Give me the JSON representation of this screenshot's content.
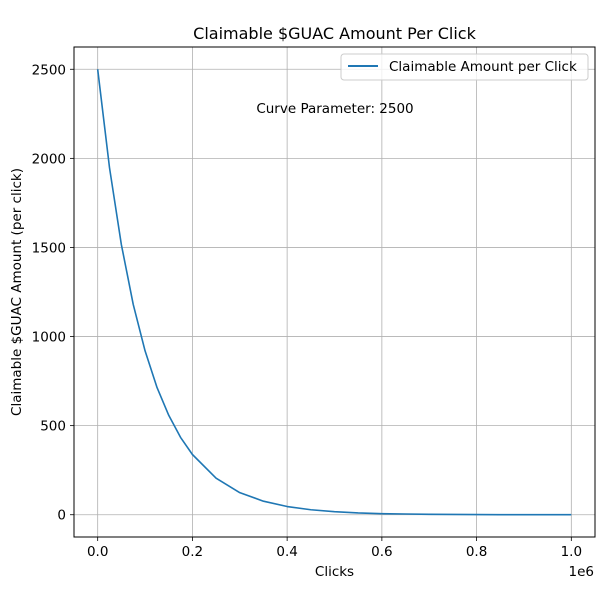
{
  "chart_data": {
    "type": "line",
    "title": "Claimable $GUAC Amount Per Click",
    "xlabel": "Clicks",
    "ylabel": "Claimable $GUAC Amount (per click)",
    "x_offset_label": "1e6",
    "xlim": [
      -0.05,
      1.05
    ],
    "ylim": [
      -125,
      2625
    ],
    "x_ticks": [
      0.0,
      0.2,
      0.4,
      0.6,
      0.8,
      1.0
    ],
    "x_tick_labels": [
      "0.0",
      "0.2",
      "0.4",
      "0.6",
      "0.8",
      "1.0"
    ],
    "y_ticks": [
      0,
      500,
      1000,
      1500,
      2000,
      2500
    ],
    "y_tick_labels": [
      "0",
      "500",
      "1000",
      "1500",
      "2000",
      "2500"
    ],
    "grid": true,
    "legend_position": "top-right",
    "annotation": "Curve Parameter: 2500",
    "series": [
      {
        "name": "Claimable Amount per Click",
        "color": "#1f77b4",
        "x": [
          0.0,
          0.025,
          0.05,
          0.075,
          0.1,
          0.125,
          0.15,
          0.175,
          0.2,
          0.25,
          0.3,
          0.35,
          0.4,
          0.45,
          0.5,
          0.55,
          0.6,
          0.65,
          0.7,
          0.75,
          0.8,
          0.85,
          0.9,
          0.95,
          1.0
        ],
        "y": [
          2500,
          1947,
          1516,
          1181,
          920,
          716,
          558,
          434,
          338,
          205,
          124,
          76,
          46,
          28,
          17,
          10,
          6,
          4,
          2.3,
          1.4,
          0.8,
          0.5,
          0.3,
          0.2,
          0.1
        ]
      }
    ]
  }
}
